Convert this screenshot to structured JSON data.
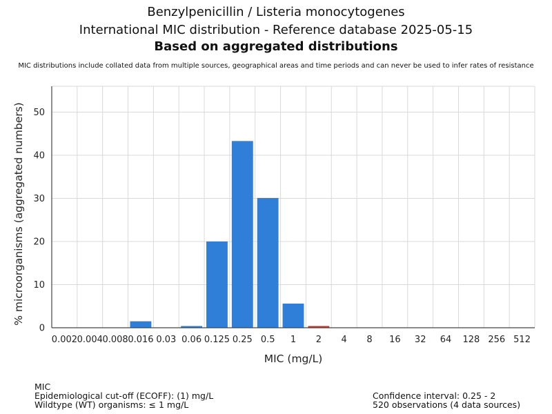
{
  "header": {
    "title_line1": "Benzylpenicillin / Listeria monocytogenes",
    "title_line2": "International MIC distribution - Reference database 2025-05-15",
    "title_line3": "Based on aggregated distributions",
    "subtitle": "MIC distributions include collated data from multiple sources, geographical areas and time periods and can never be used to infer rates of resistance"
  },
  "chart_data": {
    "type": "bar",
    "xlabel": "MIC (mg/L)",
    "ylabel": "% microorganisms (aggregated numbers)",
    "ylim": [
      0,
      56
    ],
    "yticks": [
      0,
      10,
      20,
      30,
      40,
      50
    ],
    "grid": true,
    "categories": [
      "0.002",
      "0.004",
      "0.008",
      "0.016",
      "0.03",
      "0.06",
      "0.125",
      "0.25",
      "0.5",
      "1",
      "2",
      "4",
      "8",
      "16",
      "32",
      "64",
      "128",
      "256",
      "512"
    ],
    "values": [
      0,
      0,
      0,
      1.5,
      0,
      0.4,
      20,
      43.3,
      30.1,
      5.6,
      0.4,
      0,
      0,
      0,
      0,
      0,
      0,
      0,
      0
    ],
    "colors": {
      "wildtype": "#2f7fd8",
      "non_wildtype": "#c7352b",
      "grid": "#d9d9d9",
      "axis": "#444444"
    },
    "non_wildtype_categories": [
      "2"
    ]
  },
  "footer": {
    "left_line1": "MIC",
    "left_line2": "Epidemiological cut-off (ECOFF): (1) mg/L",
    "left_line3": "Wildtype (WT) organisms: ≤ 1 mg/L",
    "right_line1": "Confidence interval: 0.25 - 2",
    "right_line2": "520 observations (4 data sources)"
  }
}
